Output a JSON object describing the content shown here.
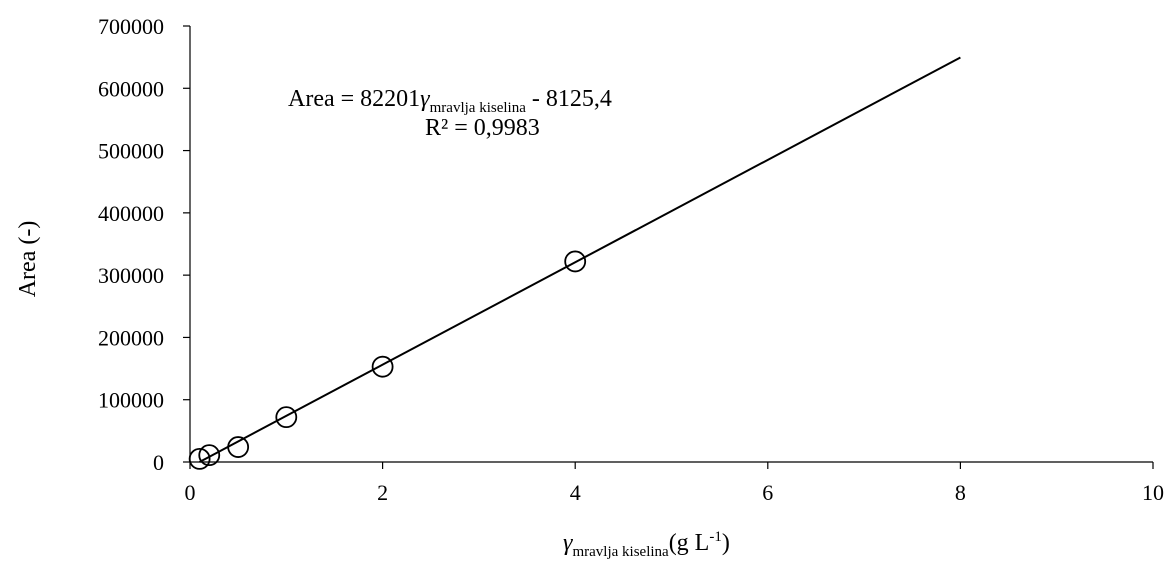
{
  "chart_data": {
    "type": "scatter",
    "x": [
      0.1,
      0.2,
      0.5,
      1,
      2,
      4
    ],
    "y": [
      5000,
      11000,
      24000,
      72000,
      153000,
      322000
    ],
    "marker": "open-circle",
    "trendline": {
      "type": "linear",
      "slope": 82201,
      "intercept": -8125.4,
      "x_range": [
        0,
        8
      ],
      "r_squared": "0,9983"
    },
    "xlim": [
      0,
      10
    ],
    "ylim": [
      0,
      700000
    ],
    "xticks": [
      "0",
      "2",
      "4",
      "6",
      "8",
      "10"
    ],
    "yticks": [
      "0",
      "100000",
      "200000",
      "300000",
      "400000",
      "500000",
      "600000",
      "700000"
    ],
    "xlabel": {
      "symbol": "γ",
      "subscript": "mravlja kiselina",
      "unit": "(g L",
      "unit_sup": "-1",
      "unit_end": ")"
    },
    "ylabel": "Area (-)",
    "equation": {
      "prefix": "Area = 82201",
      "symbol": "γ",
      "subscript": "mravlja kiselina",
      "suffix": " -  8125,4"
    },
    "r2_label": "R² = 0,9983",
    "grid": false,
    "legend": false
  }
}
